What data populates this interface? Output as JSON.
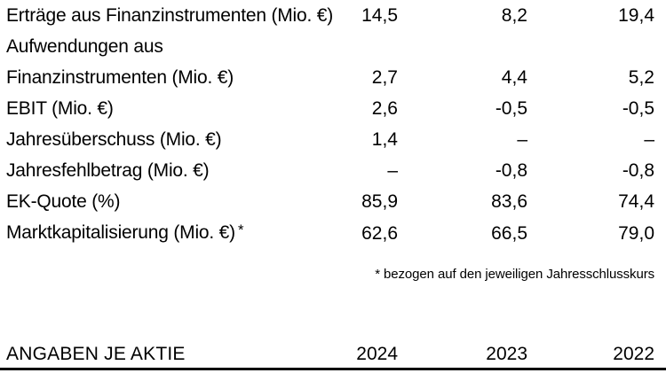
{
  "document": {
    "table": {
      "unit_note": "Mio. €",
      "rows": [
        {
          "label": "Erträge aus Finanzinstrumenten (Mio. €)",
          "values": [
            "14,5",
            "8,2",
            "19,4"
          ]
        },
        {
          "label_line1": "Aufwendungen aus",
          "label_line2": "Finanzinstrumenten (Mio. €)",
          "values": [
            "2,7",
            "4,4",
            "5,2"
          ]
        },
        {
          "label": "EBIT (Mio. €)",
          "values": [
            "2,6",
            "-0,5",
            "-0,5"
          ]
        },
        {
          "label": "Jahresüberschuss (Mio. €)",
          "values": [
            "1,4",
            "–",
            "–"
          ]
        },
        {
          "label": "Jahresfehlbetrag (Mio. €)",
          "values": [
            "–",
            "-0,8",
            "-0,8"
          ]
        },
        {
          "label": "EK-Quote (%)",
          "values": [
            "85,9",
            "83,6",
            "74,4"
          ]
        },
        {
          "label": "Marktkapitalisierung (Mio. €)",
          "footnote_marker": "*",
          "values": [
            "62,6",
            "66,5",
            "79,0"
          ]
        }
      ],
      "footnote": "* bezogen auf den jeweiligen Jahresschlusskurs"
    },
    "section_header": {
      "title": "ANGABEN JE AKTIE",
      "columns": [
        "2024",
        "2023",
        "2022"
      ]
    },
    "colors": {
      "text": "#000000",
      "background": "#ffffff",
      "rule": "#000000"
    }
  }
}
